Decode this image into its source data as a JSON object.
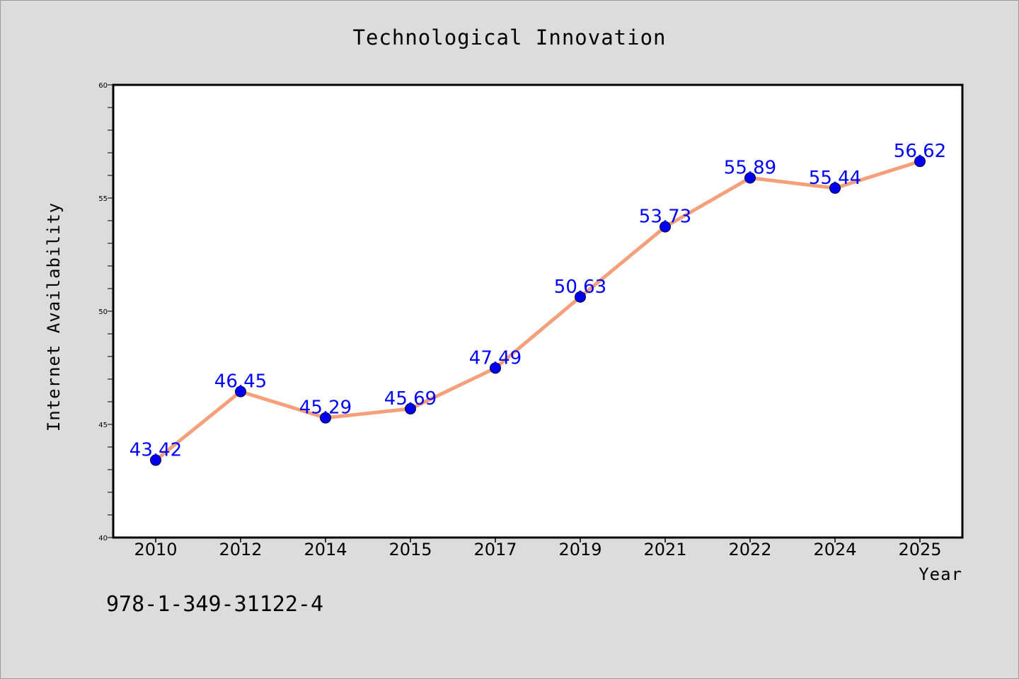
{
  "colors": {
    "background": "#dcdcdc",
    "plot_area": "#ffffff",
    "line": "#f5a07a",
    "marker": "#0000ee",
    "data_label": "#0000ff"
  },
  "footnote": "978-1-349-31122-4",
  "chart_data": {
    "type": "line",
    "title": "Technological Innovation",
    "xlabel": "Year",
    "ylabel": "Internet Availability",
    "categories": [
      "2010",
      "2012",
      "2014",
      "2015",
      "2017",
      "2019",
      "2021",
      "2022",
      "2024",
      "2025"
    ],
    "series": [
      {
        "values": [
          43.42,
          46.45,
          45.29,
          45.69,
          47.49,
          50.63,
          53.73,
          55.89,
          55.44,
          56.62
        ],
        "data_labels": [
          "43.42",
          "46.45",
          "45.29",
          "45.69",
          "47.49",
          "50.63",
          "53.73",
          "55.89",
          "55.44",
          "56.62"
        ]
      }
    ],
    "ylim": [
      40,
      60
    ],
    "yticks": [
      "40",
      "45",
      "50",
      "55",
      "60"
    ],
    "y_minor_step": 1,
    "grid": false,
    "legend": "none",
    "markers": true
  }
}
